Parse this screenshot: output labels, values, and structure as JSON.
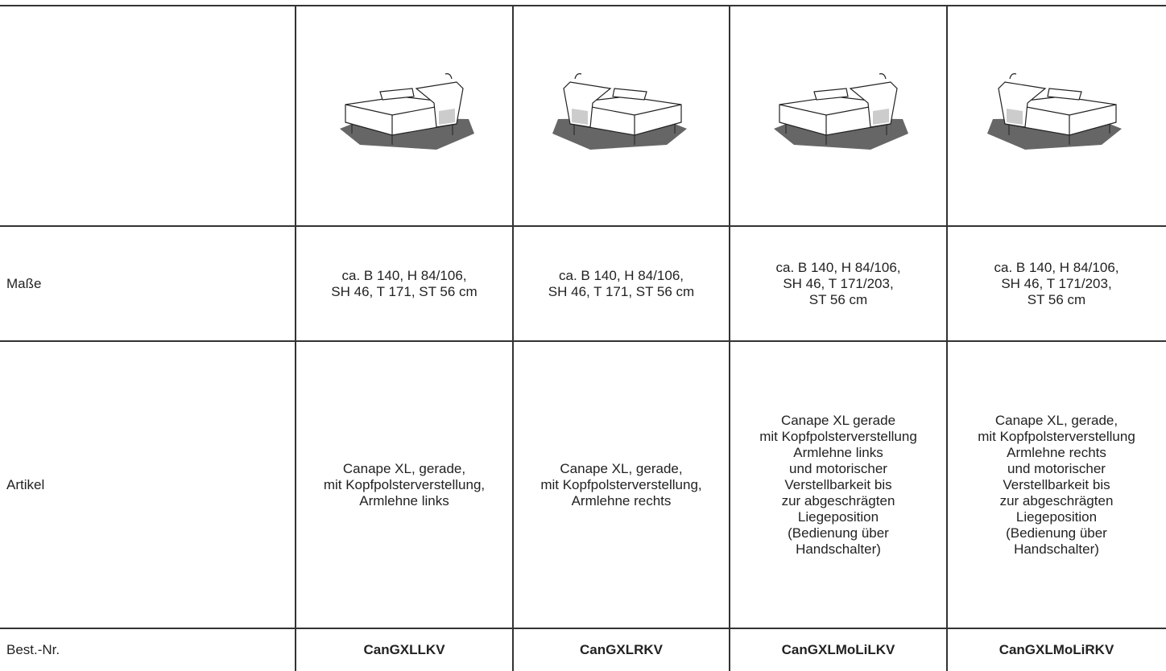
{
  "table": {
    "rows": [
      [
        "Maße",
        "ca. B 140, H 84/106,\nSH 46, T 171, ST 56 cm",
        "ca. B 140, H 84/106,\nSH 46, T 171, ST 56 cm",
        "ca. B 140, H 84/106,\nSH 46, T 171/203,\nST 56 cm",
        "ca. B 140, H 84/106,\nSH 46, T 171/203,\nST 56 cm"
      ],
      [
        "Artikel",
        "Canape XL, gerade,\nmit Kopfpolsterverstellung,\nArmlehne links",
        "Canape XL, gerade,\nmit Kopfpolsterverstellung,\nArmlehne rechts",
        "Canape XL gerade\nmit Kopfpolsterverstellung\nArmlehne links\nund motorischer\nVerstellbarkeit bis\nzur abgeschrägten\nLiegeposition\n(Bedienung über\nHandschalter)",
        "Canape XL, gerade,\nmit Kopfpolsterverstellung\nArmlehne rechts\nund motorischer\nVerstellbarkeit bis\nzur abgeschrägten\nLiegeposition\n(Bedienung über\nHandschalter)"
      ],
      [
        "Best.-Nr.",
        "CanGXLLKV",
        "CanGXLRKV",
        "CanGXLMoLiLKV",
        "CanGXLMoLiRKV"
      ]
    ]
  }
}
